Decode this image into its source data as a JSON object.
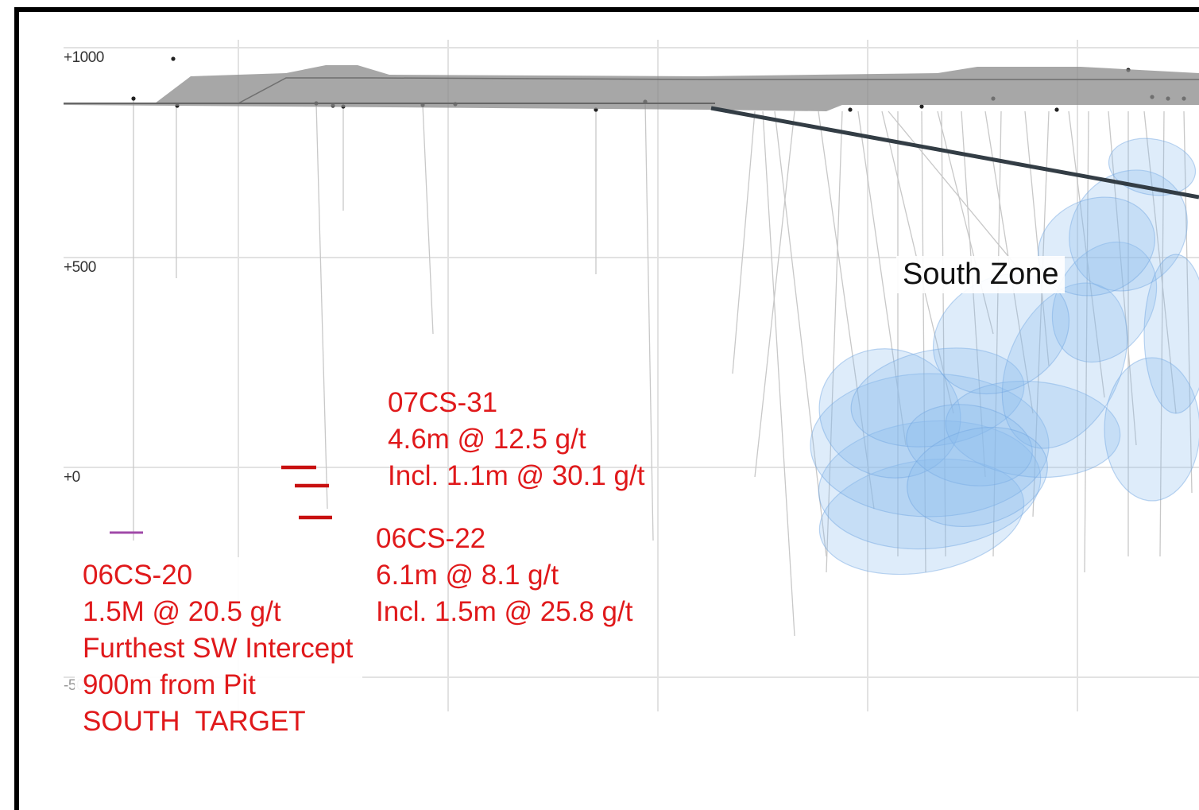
{
  "section": {
    "elevation_labels": [
      "+1000",
      "+500",
      "+0",
      "-500"
    ],
    "zone_label": "South Zone",
    "colors": {
      "callout_text": "#e0191b",
      "intercept_red": "#c81010",
      "intercept_purple": "#a04aa8",
      "ore_body": "#8ab9ec",
      "topography": "#8a8a8a",
      "drillhole": "#c8c8c8",
      "fault": "#333d45",
      "frame": "#000000"
    }
  },
  "callouts": {
    "hole_07cs31": {
      "hole_id": "07CS-31",
      "intercept": "4.6m @ 12.5 g/t",
      "including": "Incl. 1.1m @ 30.1 g/t"
    },
    "hole_06cs22": {
      "hole_id": "06CS-22",
      "intercept": "6.1m @ 8.1 g/t",
      "including": "Incl. 1.5m @ 25.8 g/t"
    },
    "hole_06cs20": {
      "hole_id": "06CS-20",
      "intercept": "1.5M @ 20.5 g/t",
      "note": "Furthest SW Intercept",
      "distance": "900m from Pit",
      "target": "SOUTH  TARGET"
    }
  }
}
